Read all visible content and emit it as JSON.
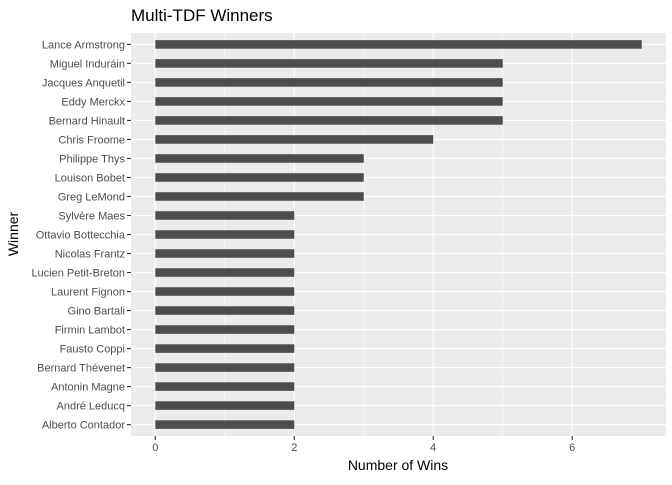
{
  "chart_data": {
    "type": "bar",
    "orientation": "horizontal",
    "title": "Multi-TDF Winners",
    "xlabel": "Number of Wins",
    "ylabel": "Winner",
    "xlim": [
      -0.35,
      7.35
    ],
    "xticks": [
      0,
      2,
      4,
      6
    ],
    "grid": true,
    "bar_color": "#4d4d4d",
    "panel_color": "#ebebeb",
    "categories": [
      "Lance Armstrong",
      "Miguel Induráin",
      "Jacques Anquetil",
      "Eddy Merckx",
      "Bernard Hinault",
      "Chris Froome",
      "Philippe Thys",
      "Louison Bobet",
      "Greg LeMond",
      "Sylvère Maes",
      "Ottavio Bottecchia",
      "Nicolas Frantz",
      "Lucien Petit-Breton",
      "Laurent Fignon",
      "Gino Bartali",
      "Firmin Lambot",
      "Fausto Coppi",
      "Bernard Thévenet",
      "Antonin Magne",
      "André Leducq",
      "Alberto Contador"
    ],
    "values": [
      7,
      5,
      5,
      5,
      5,
      4,
      3,
      3,
      3,
      2,
      2,
      2,
      2,
      2,
      2,
      2,
      2,
      2,
      2,
      2,
      2
    ]
  }
}
